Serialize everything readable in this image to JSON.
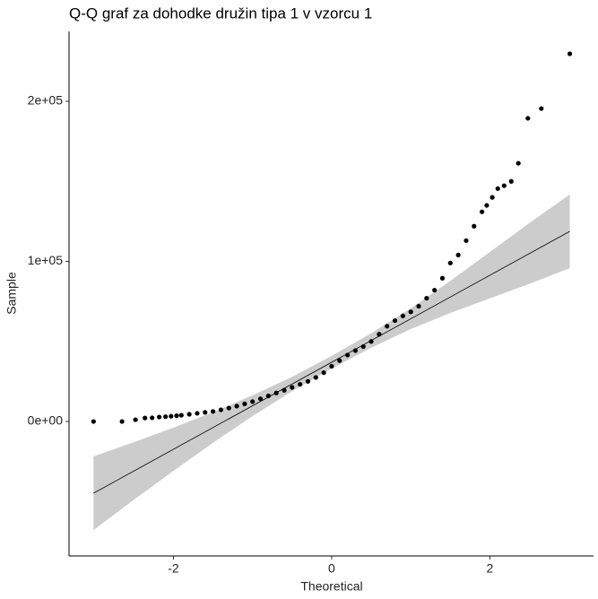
{
  "chart_data": {
    "type": "scatter",
    "title": "Q-Q graf za dohodke družin tipa 1 v vzorcu 1",
    "x_label": "Theoretical",
    "y_label": "Sample",
    "color": "#000000",
    "x": [
      -3.01,
      -2.65,
      -2.48,
      -2.36,
      -2.27,
      -2.18,
      -2.1,
      -2.03,
      -1.96,
      -1.9,
      -1.8,
      -1.7,
      -1.6,
      -1.5,
      -1.4,
      -1.3,
      -1.2,
      -1.1,
      -1.0,
      -0.9,
      -0.8,
      -0.7,
      -0.6,
      -0.5,
      -0.4,
      -0.3,
      -0.2,
      -0.1,
      0,
      0.1,
      0.2,
      0.3,
      0.4,
      0.5,
      0.6,
      0.7,
      0.8,
      0.9,
      1.0,
      1.1,
      1.2,
      1.3,
      1.4,
      1.5,
      1.6,
      1.7,
      1.8,
      1.9,
      1.96,
      2.03,
      2.1,
      2.18,
      2.27,
      2.36,
      2.48,
      2.65,
      3.01
    ],
    "values": [
      0,
      0,
      1100,
      2200,
      2300,
      2800,
      3000,
      3300,
      3600,
      3900,
      4500,
      5100,
      5700,
      6300,
      7300,
      8400,
      9600,
      11000,
      12400,
      14200,
      16000,
      17800,
      19500,
      21300,
      23200,
      25100,
      27500,
      30500,
      34500,
      38000,
      41500,
      44300,
      46800,
      50000,
      54500,
      59500,
      63000,
      66000,
      68500,
      72000,
      77000,
      82000,
      89500,
      99000,
      104000,
      113000,
      122000,
      131000,
      135000,
      140000,
      145500,
      147300,
      150000,
      161300,
      189400,
      195500,
      229700
    ],
    "reference_line": {
      "color": "#000000",
      "x": [
        -3.01,
        3.01
      ],
      "values": [
        -44800,
        118800
      ]
    },
    "confidence_band": {
      "color": "#cccccc",
      "x": [
        -3.01,
        -2.5,
        -2,
        -1.5,
        -1,
        -0.5,
        0,
        0.5,
        1,
        1.5,
        2,
        2.5,
        3.01
      ],
      "lower": [
        -67800,
        -48940,
        -30850,
        -13260,
        3330,
        18920,
        33000,
        46100,
        57700,
        67800,
        76900,
        86000,
        95800
      ],
      "upper": [
        -21800,
        -12940,
        -3850,
        5740,
        16330,
        27920,
        41000,
        55100,
        70700,
        87800,
        105900,
        124000,
        141800
      ]
    },
    "xlim": [
      -3.32,
      3.31
    ],
    "xticks": [
      -2,
      0,
      2
    ],
    "ylim": [
      -84000,
      243700
    ],
    "yticks": [
      {
        "value": 0,
        "label": "0e+00"
      },
      {
        "value": 100000,
        "label": "1e+05"
      },
      {
        "value": 200000,
        "label": "2e+05"
      }
    ],
    "grid": false
  }
}
